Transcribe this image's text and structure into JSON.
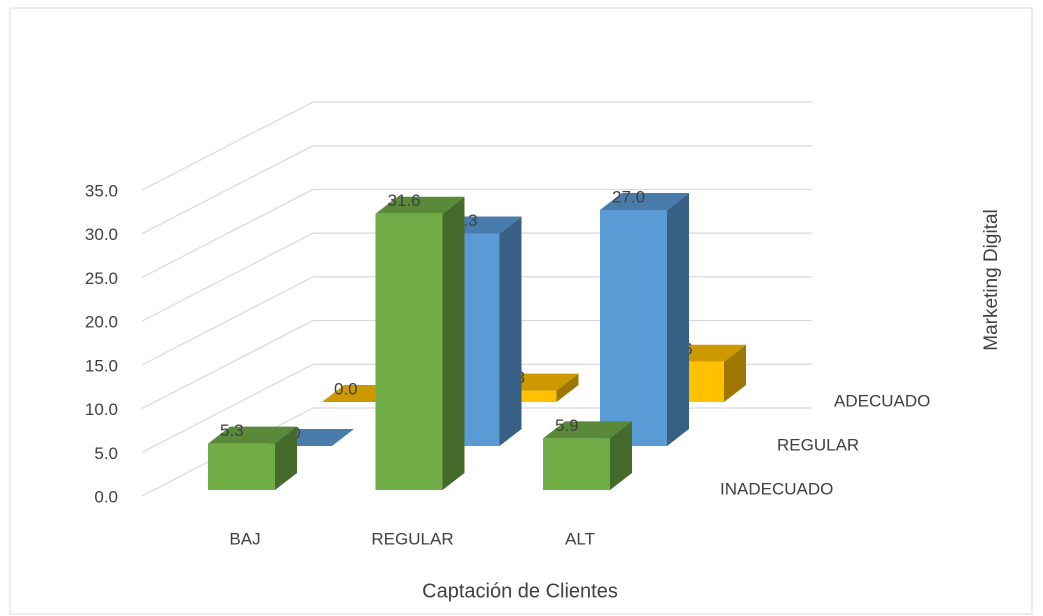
{
  "chart_data": {
    "type": "bar3d",
    "x_label": "Captación de Clientes",
    "z_label": "Marketing Digital",
    "categories": [
      "BAJ",
      "REGULAR",
      "ALT"
    ],
    "series": [
      {
        "name": "INADECUADO",
        "color": "#70ad47",
        "values": [
          5.3,
          31.6,
          5.9
        ],
        "value_labels": [
          "5.3",
          "31.6",
          "5.9"
        ]
      },
      {
        "name": "REGULAR",
        "color": "#5b9bd5",
        "values": [
          0,
          24.3,
          27.0
        ],
        "value_labels": [
          "0.0",
          "24.3",
          "27.0"
        ]
      },
      {
        "name": "ADECUADO",
        "color": "#ffc000",
        "values": [
          0,
          1.3,
          4.6
        ],
        "value_labels": [
          "0.0",
          "1.3",
          "4.6"
        ]
      }
    ],
    "ylim": [
      0,
      35
    ],
    "yticks": [
      {
        "value": 0,
        "label": "0.0"
      },
      {
        "value": 5,
        "label": "5.0"
      },
      {
        "value": 10,
        "label": "10.0"
      },
      {
        "value": 15,
        "label": "15.0"
      },
      {
        "value": 20,
        "label": "20.0"
      },
      {
        "value": 25,
        "label": "25.0"
      },
      {
        "value": 30,
        "label": "30.0"
      },
      {
        "value": 35,
        "label": "35.0"
      }
    ],
    "grid": true
  }
}
